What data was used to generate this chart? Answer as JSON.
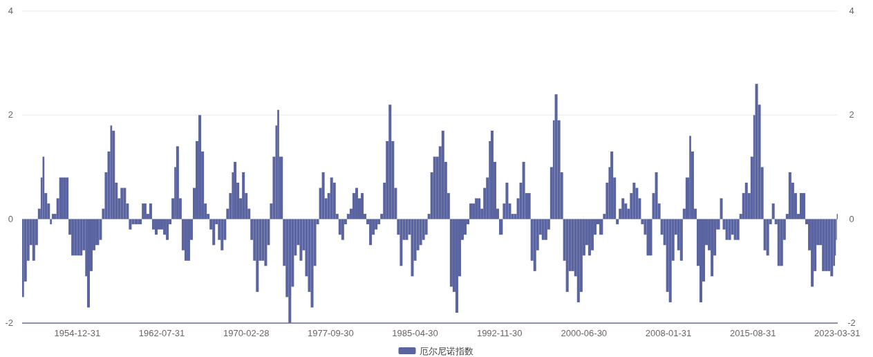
{
  "chart_data": {
    "type": "bar",
    "series": [
      {
        "name": "厄尔尼诺指数",
        "color": "#5a64a0",
        "x": [
          "1950-01",
          "1950-03",
          "1950-06",
          "1950-09",
          "1950-12",
          "1951-03",
          "1951-06",
          "1951-09",
          "1951-11",
          "1952-01",
          "1952-04",
          "1952-07",
          "1952-09",
          "1953-02",
          "1953-05",
          "1953-09",
          "1953-12",
          "1954-03",
          "1954-06",
          "1954-09",
          "1954-12",
          "1955-03",
          "1955-06",
          "1955-09",
          "1955-11",
          "1956-02",
          "1956-05",
          "1956-08",
          "1956-12",
          "1957-03",
          "1957-06",
          "1957-09",
          "1957-12",
          "1958-02",
          "1958-05",
          "1958-08",
          "1958-11",
          "1959-02",
          "1959-05",
          "1959-08",
          "1959-11",
          "1960-02",
          "1960-06",
          "1960-10",
          "1961-03",
          "1961-06",
          "1961-09",
          "1961-12",
          "1962-03",
          "1962-06",
          "1962-09",
          "1962-12",
          "1963-03",
          "1963-06",
          "1963-09",
          "1963-11",
          "1964-02",
          "1964-05",
          "1964-08",
          "1964-11",
          "1965-02",
          "1965-05",
          "1965-08",
          "1965-11",
          "1966-02",
          "1966-05",
          "1966-08",
          "1966-11",
          "1967-02",
          "1967-05",
          "1967-08",
          "1967-11",
          "1968-02",
          "1968-05",
          "1968-08",
          "1968-11",
          "1969-01",
          "1969-04",
          "1969-07",
          "1969-10",
          "1970-01",
          "1970-04",
          "1970-07",
          "1970-10",
          "1971-01",
          "1971-04",
          "1971-07",
          "1971-10",
          "1972-01",
          "1972-04",
          "1972-07",
          "1972-10",
          "1972-12",
          "1973-02",
          "1973-06",
          "1973-09",
          "1973-12",
          "1974-03",
          "1974-06",
          "1974-09",
          "1974-12",
          "1975-03",
          "1975-06",
          "1975-09",
          "1975-12",
          "1976-03",
          "1976-06",
          "1976-09",
          "1976-12",
          "1977-03",
          "1977-06",
          "1977-09",
          "1977-12",
          "1978-03",
          "1978-06",
          "1978-09",
          "1978-12",
          "1979-03",
          "1979-06",
          "1979-09",
          "1979-12",
          "1980-03",
          "1980-06",
          "1980-09",
          "1980-12",
          "1981-03",
          "1981-06",
          "1981-09",
          "1981-12",
          "1982-03",
          "1982-06",
          "1982-09",
          "1982-12",
          "1983-03",
          "1983-06",
          "1983-09",
          "1983-12",
          "1984-03",
          "1984-06",
          "1984-09",
          "1984-12",
          "1985-03",
          "1985-06",
          "1985-09",
          "1985-12",
          "1986-03",
          "1986-06",
          "1986-09",
          "1986-12",
          "1987-03",
          "1987-06",
          "1987-09",
          "1987-12",
          "1988-03",
          "1988-06",
          "1988-09",
          "1988-12",
          "1989-03",
          "1989-06",
          "1989-09",
          "1989-12",
          "1990-03",
          "1990-06",
          "1990-09",
          "1990-12",
          "1991-03",
          "1991-06",
          "1991-09",
          "1991-12",
          "1992-02",
          "1992-05",
          "1992-08",
          "1992-11",
          "1993-03",
          "1993-06",
          "1993-09",
          "1993-12",
          "1994-03",
          "1994-06",
          "1994-09",
          "1994-12",
          "1995-03",
          "1995-09",
          "1995-12",
          "1996-03",
          "1996-06",
          "1996-09",
          "1996-12",
          "1997-03",
          "1997-06",
          "1997-09",
          "1997-11",
          "1998-02",
          "1998-05",
          "1998-08",
          "1998-11",
          "1999-02",
          "1999-05",
          "1999-08",
          "1999-11",
          "2000-02",
          "2000-05",
          "2000-08",
          "2000-11",
          "2001-02",
          "2001-05",
          "2001-08",
          "2001-11",
          "2002-03",
          "2002-06",
          "2002-09",
          "2002-11",
          "2003-02",
          "2003-05",
          "2003-08",
          "2003-11",
          "2004-02",
          "2004-05",
          "2004-08",
          "2004-11",
          "2005-02",
          "2005-05",
          "2005-08",
          "2005-11",
          "2006-02",
          "2006-08",
          "2006-11",
          "2007-02",
          "2007-05",
          "2007-08",
          "2007-11",
          "2008-02",
          "2008-05",
          "2008-08",
          "2008-11",
          "2009-02",
          "2009-05",
          "2009-08",
          "2009-12",
          "2010-02",
          "2010-05",
          "2010-08",
          "2010-11",
          "2011-02",
          "2011-05",
          "2011-08",
          "2011-11",
          "2012-02",
          "2012-05",
          "2012-09",
          "2012-12",
          "2013-03",
          "2013-06",
          "2013-09",
          "2013-12",
          "2014-03",
          "2014-06",
          "2014-09",
          "2014-12",
          "2015-03",
          "2015-06",
          "2015-09",
          "2015-11",
          "2016-02",
          "2016-05",
          "2016-08",
          "2016-11",
          "2017-02",
          "2017-05",
          "2017-08",
          "2017-11",
          "2018-02",
          "2018-05",
          "2018-08",
          "2018-11",
          "2019-02",
          "2019-05",
          "2019-08",
          "2019-11",
          "2020-02",
          "2020-05",
          "2020-08",
          "2020-11",
          "2021-02",
          "2021-05",
          "2021-08",
          "2021-11",
          "2022-02",
          "2022-05",
          "2022-08",
          "2022-11",
          "2023-01",
          "2023-02",
          "2023-03"
        ],
        "values": [
          -1.5,
          -1.2,
          -0.8,
          -0.5,
          -0.8,
          -0.5,
          0.2,
          0.8,
          1.2,
          0.5,
          0.3,
          -0.1,
          0.1,
          0.4,
          0.8,
          0.8,
          0.8,
          -0.3,
          -0.7,
          -0.7,
          -0.7,
          -0.7,
          -0.6,
          -1.1,
          -1.7,
          -1.0,
          -0.6,
          -0.5,
          -0.4,
          0.2,
          0.9,
          1.3,
          1.8,
          1.7,
          0.7,
          0.4,
          0.6,
          0.6,
          0.3,
          -0.2,
          -0.1,
          -0.1,
          -0.1,
          0.3,
          0.1,
          0.3,
          -0.2,
          -0.3,
          -0.2,
          -0.2,
          -0.3,
          -0.4,
          -0.1,
          0.4,
          1.0,
          1.4,
          0.4,
          -0.6,
          -0.8,
          -0.8,
          -0.4,
          0.6,
          1.5,
          2.0,
          1.3,
          0.3,
          0.1,
          -0.2,
          -0.5,
          -0.1,
          -0.4,
          -0.6,
          -0.4,
          0.2,
          0.5,
          0.9,
          1.1,
          0.7,
          0.4,
          0.9,
          0.5,
          0.2,
          -0.4,
          -0.8,
          -1.4,
          -0.8,
          -0.8,
          -0.9,
          -0.5,
          0.3,
          1.2,
          1.8,
          2.1,
          1.2,
          -0.9,
          -1.5,
          -2.0,
          -1.3,
          -0.7,
          -0.5,
          -0.8,
          -0.6,
          -1.1,
          -1.4,
          -1.7,
          -0.9,
          -0.1,
          0.6,
          0.9,
          0.4,
          0.5,
          0.8,
          0.7,
          0.1,
          -0.3,
          -0.4,
          -0.1,
          0.1,
          0.2,
          0.5,
          0.6,
          0.4,
          0.5,
          0.1,
          -0.1,
          -0.5,
          -0.3,
          -0.2,
          -0.1,
          0.1,
          0.7,
          1.5,
          2.2,
          1.5,
          0.6,
          -0.3,
          -0.9,
          -0.4,
          -0.4,
          -0.3,
          -1.1,
          -0.8,
          -0.6,
          -0.5,
          -0.4,
          -0.3,
          0.1,
          0.9,
          1.2,
          1.2,
          1.4,
          1.7,
          1.1,
          0.5,
          -1.3,
          -1.4,
          -1.8,
          -1.1,
          -0.4,
          -0.3,
          -0.1,
          0.3,
          0.3,
          0.4,
          0.4,
          0.2,
          0.6,
          0.8,
          1.5,
          1.7,
          1.1,
          0.2,
          -0.3,
          0.3,
          0.7,
          0.3,
          0.1,
          0.1,
          0.4,
          0.7,
          1.1,
          0.5,
          -0.8,
          -1.0,
          -0.6,
          -0.3,
          -0.4,
          -0.4,
          -0.2,
          1.0,
          1.9,
          2.4,
          1.9,
          0.9,
          -0.8,
          -1.4,
          -1.0,
          -1.0,
          -1.1,
          -1.6,
          -1.4,
          -0.7,
          -0.5,
          -0.7,
          -0.6,
          -0.3,
          -0.1,
          -0.3,
          0.1,
          0.7,
          1.0,
          1.3,
          0.8,
          -0.1,
          0.2,
          0.4,
          0.3,
          0.2,
          0.5,
          0.7,
          0.6,
          0.4,
          -0.1,
          -0.3,
          -0.7,
          0.5,
          0.9,
          0.3,
          -0.3,
          -0.5,
          -1.4,
          -1.6,
          -0.8,
          -0.3,
          -0.6,
          -0.8,
          0.2,
          0.8,
          1.6,
          1.3,
          0.2,
          -0.9,
          -1.6,
          -1.2,
          -0.5,
          -0.6,
          -1.1,
          -0.7,
          -0.2,
          0.4,
          -0.2,
          -0.4,
          -0.4,
          -0.3,
          -0.4,
          -0.4,
          0.1,
          0.5,
          0.7,
          0.5,
          1.2,
          2.0,
          2.6,
          2.2,
          1.0,
          -0.6,
          -0.7,
          -0.1,
          0.3,
          -0.1,
          -0.9,
          -0.9,
          -0.4,
          0.1,
          0.9,
          0.7,
          0.5,
          0.1,
          0.5,
          0.5,
          -0.1,
          -0.6,
          -1.3,
          -1.0,
          -0.5,
          -0.5,
          -1.0,
          -1.0,
          -1.0,
          -1.1,
          -0.9,
          -0.7,
          -0.4,
          0.1
        ]
      }
    ],
    "xlim": [
      "1950-01",
      "2023-03"
    ],
    "xticks": [
      {
        "value": "1954-12",
        "label": "1954-12-31"
      },
      {
        "value": "1962-07",
        "label": "1962-07-31"
      },
      {
        "value": "1970-02",
        "label": "1970-02-28"
      },
      {
        "value": "1977-09",
        "label": "1977-09-30"
      },
      {
        "value": "1985-04",
        "label": "1985-04-30"
      },
      {
        "value": "1992-11",
        "label": "1992-11-30"
      },
      {
        "value": "2000-06",
        "label": "2000-06-30"
      },
      {
        "value": "2008-01",
        "label": "2008-01-31"
      },
      {
        "value": "2015-08",
        "label": "2015-08-31"
      },
      {
        "value": "2023-03",
        "label": "2023-03-31"
      }
    ],
    "ylim": [
      -2,
      4
    ],
    "yticks": [
      -2,
      0,
      2,
      4
    ],
    "y2lim": [
      -2,
      4
    ],
    "y2ticks": [
      -2,
      0,
      2,
      4
    ],
    "grid": "y",
    "legend": "bottom"
  }
}
